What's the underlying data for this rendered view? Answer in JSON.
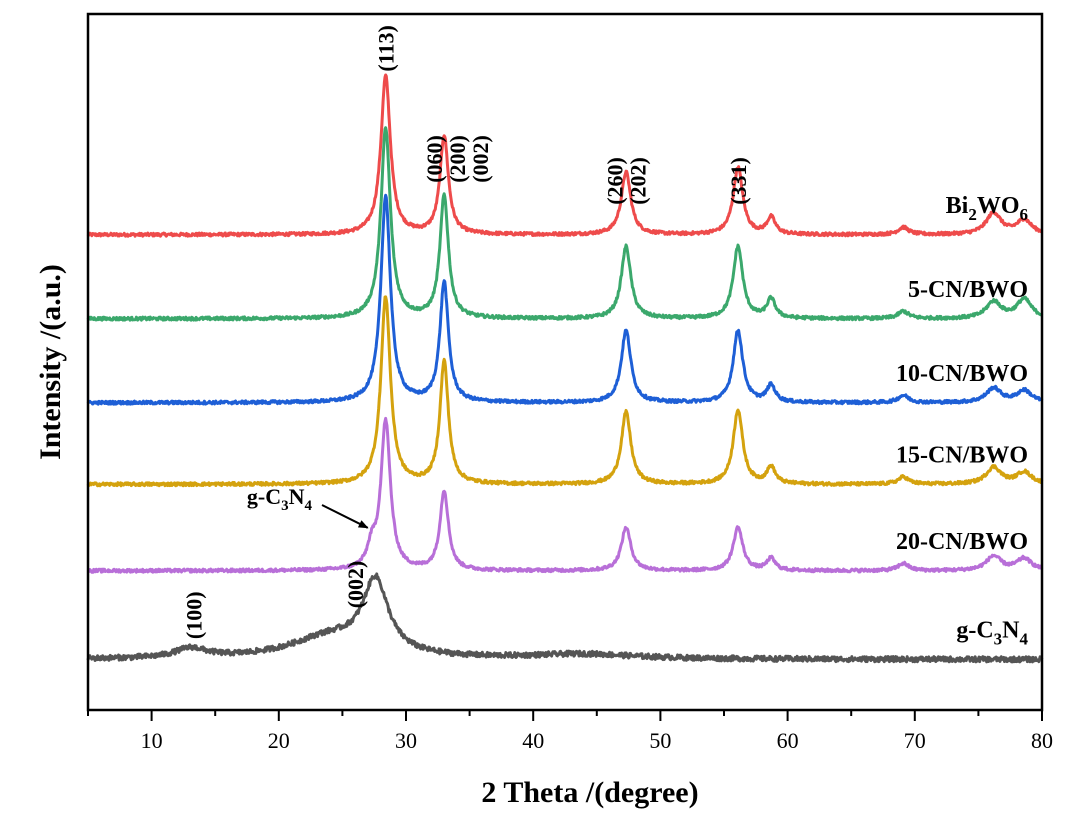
{
  "chart_data": {
    "type": "line",
    "title": "",
    "xlabel": "2 Theta /(degree)",
    "ylabel": "Intensity /(a.u.)",
    "xlim": [
      5,
      80
    ],
    "xticks": [
      10,
      20,
      30,
      40,
      50,
      60,
      70,
      80
    ],
    "yticks": [],
    "grid": false,
    "legend": "inline labels at right of each trace",
    "series": [
      {
        "name": "Bi2WO6",
        "label_main": "Bi",
        "label_sub1": "2",
        "label_mid": "WO",
        "label_sub2": "6",
        "color": "#EE4B4B",
        "baseline": 16.3,
        "peaks": [
          {
            "x": 28.4,
            "h": 6.6,
            "w": 0.45
          },
          {
            "x": 33.0,
            "h": 4.1,
            "w": 0.4
          },
          {
            "x": 47.3,
            "h": 2.6,
            "w": 0.45
          },
          {
            "x": 56.1,
            "h": 2.8,
            "w": 0.45
          },
          {
            "x": 58.7,
            "h": 0.7,
            "w": 0.4
          },
          {
            "x": 69.1,
            "h": 0.3,
            "w": 0.5
          },
          {
            "x": 76.2,
            "h": 0.9,
            "w": 0.7
          },
          {
            "x": 78.6,
            "h": 0.6,
            "w": 0.7
          }
        ]
      },
      {
        "name": "5-CN/BWO",
        "label_main": "5-CN/BWO",
        "color": "#3BA86C",
        "baseline": 12.8,
        "peaks": [
          {
            "x": 28.4,
            "h": 7.9,
            "w": 0.45
          },
          {
            "x": 33.0,
            "h": 5.1,
            "w": 0.4
          },
          {
            "x": 47.3,
            "h": 3.0,
            "w": 0.45
          },
          {
            "x": 56.1,
            "h": 3.0,
            "w": 0.45
          },
          {
            "x": 58.7,
            "h": 0.8,
            "w": 0.4
          },
          {
            "x": 69.1,
            "h": 0.3,
            "w": 0.5
          },
          {
            "x": 76.2,
            "h": 0.7,
            "w": 0.7
          },
          {
            "x": 78.6,
            "h": 0.8,
            "w": 0.7
          }
        ]
      },
      {
        "name": "10-CN/BWO",
        "label_main": "10-CN/BWO",
        "color": "#1E5FD6",
        "baseline": 9.3,
        "peaks": [
          {
            "x": 28.4,
            "h": 8.6,
            "w": 0.45
          },
          {
            "x": 33.0,
            "h": 5.0,
            "w": 0.4
          },
          {
            "x": 47.3,
            "h": 3.0,
            "w": 0.45
          },
          {
            "x": 56.1,
            "h": 3.0,
            "w": 0.45
          },
          {
            "x": 58.7,
            "h": 0.7,
            "w": 0.4
          },
          {
            "x": 69.1,
            "h": 0.3,
            "w": 0.5
          },
          {
            "x": 76.2,
            "h": 0.6,
            "w": 0.7
          },
          {
            "x": 78.6,
            "h": 0.5,
            "w": 0.7
          }
        ]
      },
      {
        "name": "15-CN/BWO",
        "label_main": "15-CN/BWO",
        "color": "#D4A20E",
        "baseline": 5.9,
        "peaks": [
          {
            "x": 28.4,
            "h": 7.8,
            "w": 0.45
          },
          {
            "x": 33.0,
            "h": 5.1,
            "w": 0.4
          },
          {
            "x": 47.3,
            "h": 3.0,
            "w": 0.45
          },
          {
            "x": 56.1,
            "h": 3.1,
            "w": 0.45
          },
          {
            "x": 58.7,
            "h": 0.7,
            "w": 0.4
          },
          {
            "x": 69.1,
            "h": 0.3,
            "w": 0.5
          },
          {
            "x": 76.2,
            "h": 0.7,
            "w": 0.7
          },
          {
            "x": 78.6,
            "h": 0.5,
            "w": 0.7
          }
        ]
      },
      {
        "name": "20-CN/BWO",
        "label_main": "20-CN/BWO",
        "color": "#B86FD8",
        "baseline": 2.3,
        "peaks": [
          {
            "x": 28.4,
            "h": 6.2,
            "w": 0.45
          },
          {
            "x": 27.3,
            "h": 0.8,
            "w": 0.4
          },
          {
            "x": 33.0,
            "h": 3.3,
            "w": 0.4
          },
          {
            "x": 47.3,
            "h": 1.8,
            "w": 0.45
          },
          {
            "x": 56.1,
            "h": 1.8,
            "w": 0.45
          },
          {
            "x": 58.7,
            "h": 0.5,
            "w": 0.4
          },
          {
            "x": 69.1,
            "h": 0.3,
            "w": 0.5
          },
          {
            "x": 76.2,
            "h": 0.6,
            "w": 0.7
          },
          {
            "x": 78.6,
            "h": 0.5,
            "w": 0.7
          }
        ]
      },
      {
        "name": "g-C3N4",
        "label_main": "g-C",
        "label_sub1": "3",
        "label_mid": "N",
        "label_sub2": "4",
        "color": "#555555",
        "baseline": -1.4,
        "peaks": [
          {
            "x": 27.6,
            "h": 3.0,
            "w": 1.2
          },
          {
            "x": 24.0,
            "h": 0.9,
            "w": 3.8
          },
          {
            "x": 13.1,
            "h": 0.4,
            "w": 1.5
          },
          {
            "x": 44.0,
            "h": 0.2,
            "w": 5.0
          }
        ]
      }
    ],
    "peak_labels": [
      {
        "text": "(113)",
        "x": 28.4,
        "series": 0
      },
      {
        "text": "(060)",
        "x": 32.2,
        "series": 0
      },
      {
        "text": "(200)",
        "x": 34.0,
        "series": 0
      },
      {
        "text": "(002)",
        "x": 35.8,
        "series": 0
      },
      {
        "text": "(260)",
        "x": 46.4,
        "series": 0
      },
      {
        "text": "(202)",
        "x": 48.2,
        "series": 0
      },
      {
        "text": "(331)",
        "x": 56.1,
        "series": 0
      },
      {
        "text": "(100)",
        "x": 13.3,
        "series": 5
      },
      {
        "text": "(002)",
        "x": 26.0,
        "series": 5
      }
    ],
    "annotation": {
      "main": "g-C",
      "sub1": "3",
      "mid": "N",
      "sub2": "4",
      "text": "g-C3N4",
      "target_x": 27.3,
      "target_series": 4
    },
    "ylim": [
      -3.5,
      25.5
    ]
  }
}
